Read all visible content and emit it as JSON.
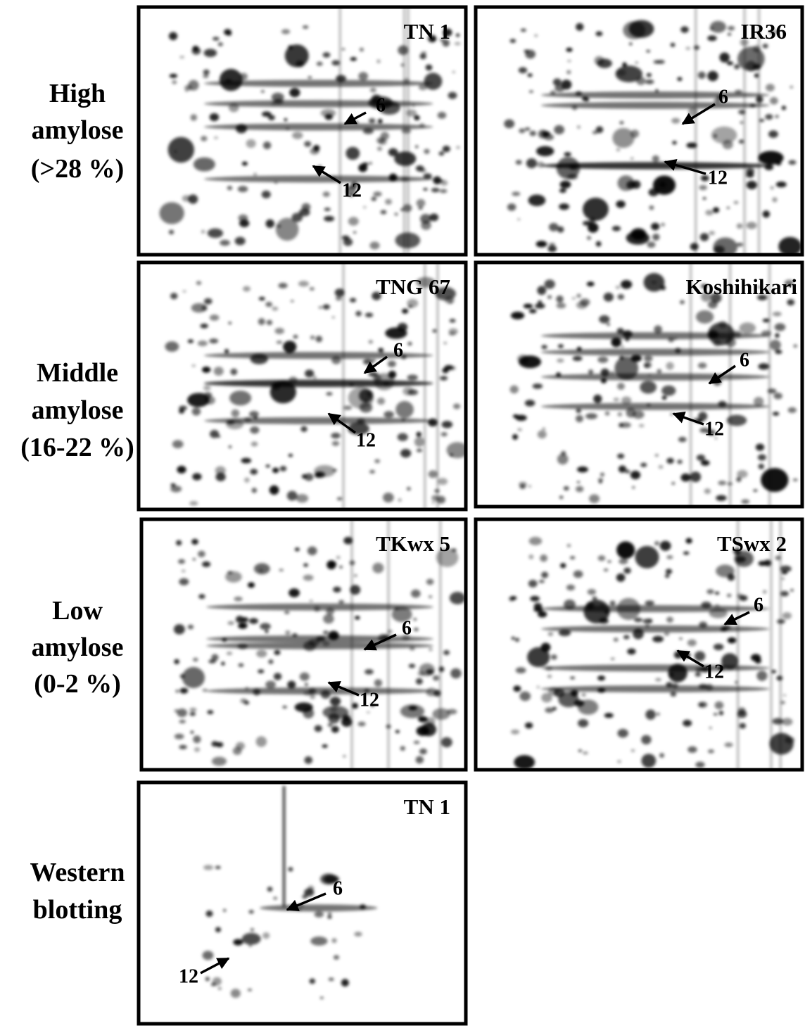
{
  "rows": [
    {
      "label": [
        "High",
        "amylose",
        "(>28 %)"
      ],
      "panels": [
        {
          "title": "TN 1",
          "arrows": [
            "6",
            "12"
          ]
        },
        {
          "title": "IR36",
          "arrows": [
            "6",
            "12"
          ]
        }
      ]
    },
    {
      "label": [
        "Middle",
        "amylose",
        "(16-22 %)"
      ],
      "panels": [
        {
          "title": "TNG 67",
          "arrows": [
            "6",
            "12"
          ]
        },
        {
          "title": "Koshihikari",
          "arrows": [
            "6",
            "12"
          ]
        }
      ]
    },
    {
      "label": [
        "Low",
        "amylose",
        "(0-2 %)"
      ],
      "panels": [
        {
          "title": "TKwx 5",
          "arrows": [
            "6",
            "12"
          ]
        },
        {
          "title": "TSwx 2",
          "arrows": [
            "6",
            "12"
          ]
        }
      ]
    },
    {
      "label": [
        "Western",
        "blotting"
      ],
      "panels": [
        {
          "title": "TN 1",
          "arrows": [
            "6",
            "12"
          ]
        }
      ]
    }
  ]
}
